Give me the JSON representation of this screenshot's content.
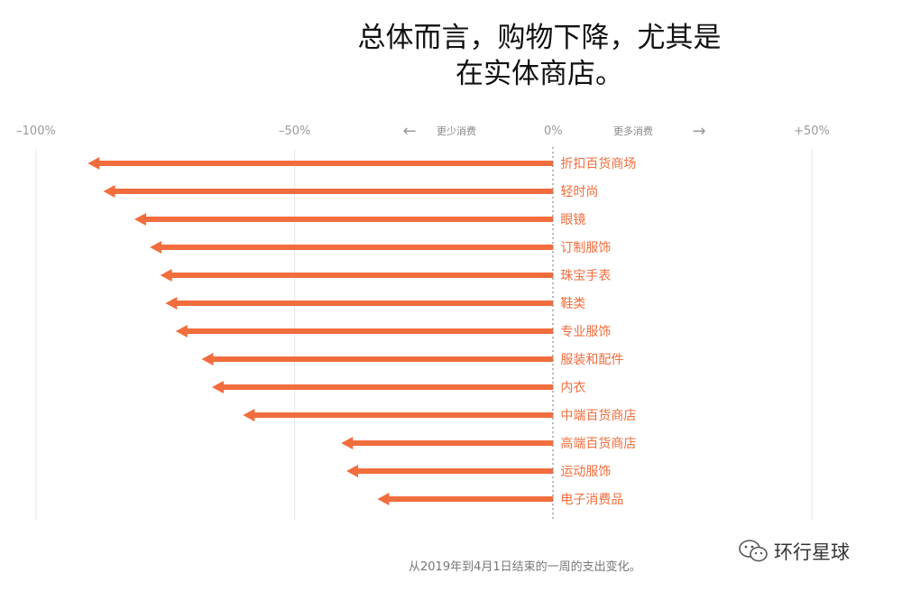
{
  "title_lines": [
    "总体而言，购物下降，尤其是",
    "在实体商店。"
  ],
  "caption": "从2019年到4月1日结束的一周的支出变化。",
  "watermark": {
    "text": "环行星球",
    "icon": "wechat-icon"
  },
  "direction_labels": {
    "left": "更少消费",
    "right": "更多消费",
    "left_arrow": "←",
    "right_arrow": "→"
  },
  "colors": {
    "bar": "#f26d3d",
    "label": "#f26d3d"
  },
  "chart_data": {
    "type": "bar",
    "orientation": "horizontal",
    "title": "总体而言，购物下降，尤其是在实体商店。",
    "xlim": [
      -100,
      50
    ],
    "ticks": [
      {
        "value": -100,
        "label": "–100%"
      },
      {
        "value": -50,
        "label": "–50%"
      },
      {
        "value": 0,
        "label": "0%"
      },
      {
        "value": 50,
        "label": "+50%"
      }
    ],
    "grid": true,
    "categories": [
      "折扣百货商场",
      "轻时尚",
      "眼镜",
      "订制服饰",
      "珠宝手表",
      "鞋类",
      "专业服饰",
      "服装和配件",
      "内衣",
      "中端百货商店",
      "高端百货商店",
      "运动服饰",
      "电子消费品"
    ],
    "values": [
      -90,
      -87,
      -81,
      -78,
      -76,
      -75,
      -73,
      -68,
      -66,
      -60,
      -41,
      -40,
      -34
    ]
  }
}
